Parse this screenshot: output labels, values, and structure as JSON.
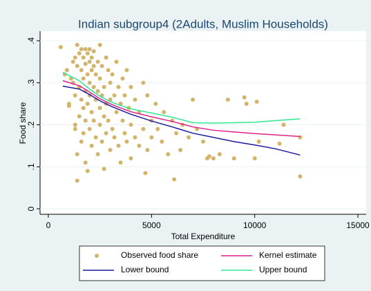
{
  "chart_data": {
    "type": "scatter",
    "title": "Indian subgroup4 (2Adults, Muslim Households)",
    "x_label": "Total Expenditure",
    "y_label": "Food share",
    "xlim": [
      -400,
      15400
    ],
    "ylim": [
      -0.013,
      0.423
    ],
    "xticks": [
      0,
      5000,
      10000,
      15000
    ],
    "yticks": [
      0,
      {
        "value": 0.1,
        "label": ".1"
      },
      {
        "value": 0.2,
        "label": ".2"
      },
      {
        "value": 0.3,
        "label": ".3"
      },
      {
        "value": 0.4,
        "label": ".4"
      }
    ],
    "grid": true,
    "legend": "bottom",
    "series": [
      {
        "name": "Observed food share",
        "type": "scatter",
        "color": "#d4b46a",
        "x": [
          600,
          800,
          900,
          1000,
          1000,
          1100,
          1200,
          1200,
          1300,
          1300,
          1300,
          1300,
          1400,
          1400,
          1400,
          1400,
          1500,
          1500,
          1500,
          1600,
          1600,
          1600,
          1600,
          1700,
          1700,
          1700,
          1700,
          1800,
          1800,
          1800,
          1800,
          1800,
          1900,
          1900,
          1900,
          1900,
          2000,
          2000,
          2000,
          2000,
          2000,
          2100,
          2100,
          2100,
          2100,
          2200,
          2200,
          2200,
          2200,
          2300,
          2300,
          2300,
          2400,
          2400,
          2400,
          2500,
          2500,
          2500,
          2500,
          2600,
          2600,
          2600,
          2700,
          2700,
          2700,
          2800,
          2800,
          2800,
          2900,
          2900,
          3000,
          3000,
          3000,
          3100,
          3100,
          3200,
          3200,
          3300,
          3300,
          3400,
          3400,
          3500,
          3500,
          3600,
          3600,
          3700,
          3700,
          3800,
          3800,
          3900,
          4000,
          4000,
          4000,
          4200,
          4200,
          4400,
          4400,
          4600,
          4600,
          4700,
          4800,
          4800,
          5000,
          5000,
          5200,
          5300,
          5500,
          5600,
          5800,
          6000,
          6100,
          6200,
          6400,
          6500,
          6800,
          7000,
          7200,
          7500,
          7700,
          7800,
          8000,
          8300,
          8700,
          9000,
          9500,
          9600,
          10000,
          10100,
          10200,
          11200,
          11400,
          12200,
          12200
        ],
        "values": [
          0.385,
          0.32,
          0.33,
          0.25,
          0.245,
          0.31,
          0.35,
          0.3,
          0.36,
          0.27,
          0.2,
          0.19,
          0.39,
          0.34,
          0.13,
          0.067,
          0.37,
          0.29,
          0.22,
          0.38,
          0.33,
          0.26,
          0.16,
          0.36,
          0.31,
          0.24,
          0.18,
          0.38,
          0.345,
          0.28,
          0.21,
          0.11,
          0.37,
          0.32,
          0.25,
          0.09,
          0.38,
          0.35,
          0.3,
          0.27,
          0.19,
          0.36,
          0.33,
          0.23,
          0.15,
          0.375,
          0.34,
          0.29,
          0.21,
          0.32,
          0.26,
          0.17,
          0.35,
          0.28,
          0.13,
          0.39,
          0.31,
          0.24,
          0.2,
          0.34,
          0.27,
          0.16,
          0.29,
          0.22,
          0.095,
          0.36,
          0.25,
          0.18,
          0.33,
          0.21,
          0.3,
          0.26,
          0.14,
          0.32,
          0.19,
          0.27,
          0.17,
          0.35,
          0.23,
          0.29,
          0.15,
          0.25,
          0.11,
          0.31,
          0.21,
          0.27,
          0.18,
          0.33,
          0.16,
          0.24,
          0.29,
          0.2,
          0.12,
          0.26,
          0.17,
          0.23,
          0.15,
          0.3,
          0.19,
          0.085,
          0.27,
          0.14,
          0.21,
          0.17,
          0.25,
          0.19,
          0.16,
          0.23,
          0.13,
          0.21,
          0.07,
          0.18,
          0.14,
          0.2,
          0.17,
          0.26,
          0.19,
          0.16,
          0.12,
          0.125,
          0.12,
          0.13,
          0.26,
          0.12,
          0.265,
          0.25,
          0.12,
          0.255,
          0.16,
          0.155,
          0.2,
          0.17,
          0.077
        ]
      },
      {
        "name": "Kernel estimate",
        "type": "line",
        "color": "#e0218a",
        "x": [
          700,
          1500,
          2000,
          2500,
          3000,
          3500,
          4000,
          5000,
          6000,
          7000,
          8000,
          9000,
          10000,
          11000,
          12200
        ],
        "values": [
          0.305,
          0.293,
          0.278,
          0.262,
          0.25,
          0.24,
          0.231,
          0.219,
          0.208,
          0.195,
          0.187,
          0.183,
          0.179,
          0.176,
          0.172
        ]
      },
      {
        "name": "Lower bound",
        "type": "line",
        "color": "#1a1a9a",
        "x": [
          700,
          1500,
          2000,
          2500,
          3000,
          3500,
          4000,
          5000,
          6000,
          7000,
          8000,
          9000,
          10000,
          11000,
          12200
        ],
        "values": [
          0.292,
          0.285,
          0.272,
          0.257,
          0.245,
          0.235,
          0.225,
          0.209,
          0.195,
          0.18,
          0.17,
          0.16,
          0.152,
          0.143,
          0.128
        ]
      },
      {
        "name": "Upper bound",
        "type": "line",
        "color": "#2ee890",
        "x": [
          700,
          1500,
          2000,
          2500,
          3000,
          3500,
          4000,
          5000,
          6000,
          7000,
          8000,
          9000,
          10000,
          11000,
          12200
        ],
        "values": [
          0.325,
          0.305,
          0.285,
          0.268,
          0.255,
          0.246,
          0.238,
          0.228,
          0.218,
          0.205,
          0.204,
          0.205,
          0.206,
          0.21,
          0.214
        ]
      }
    ]
  }
}
